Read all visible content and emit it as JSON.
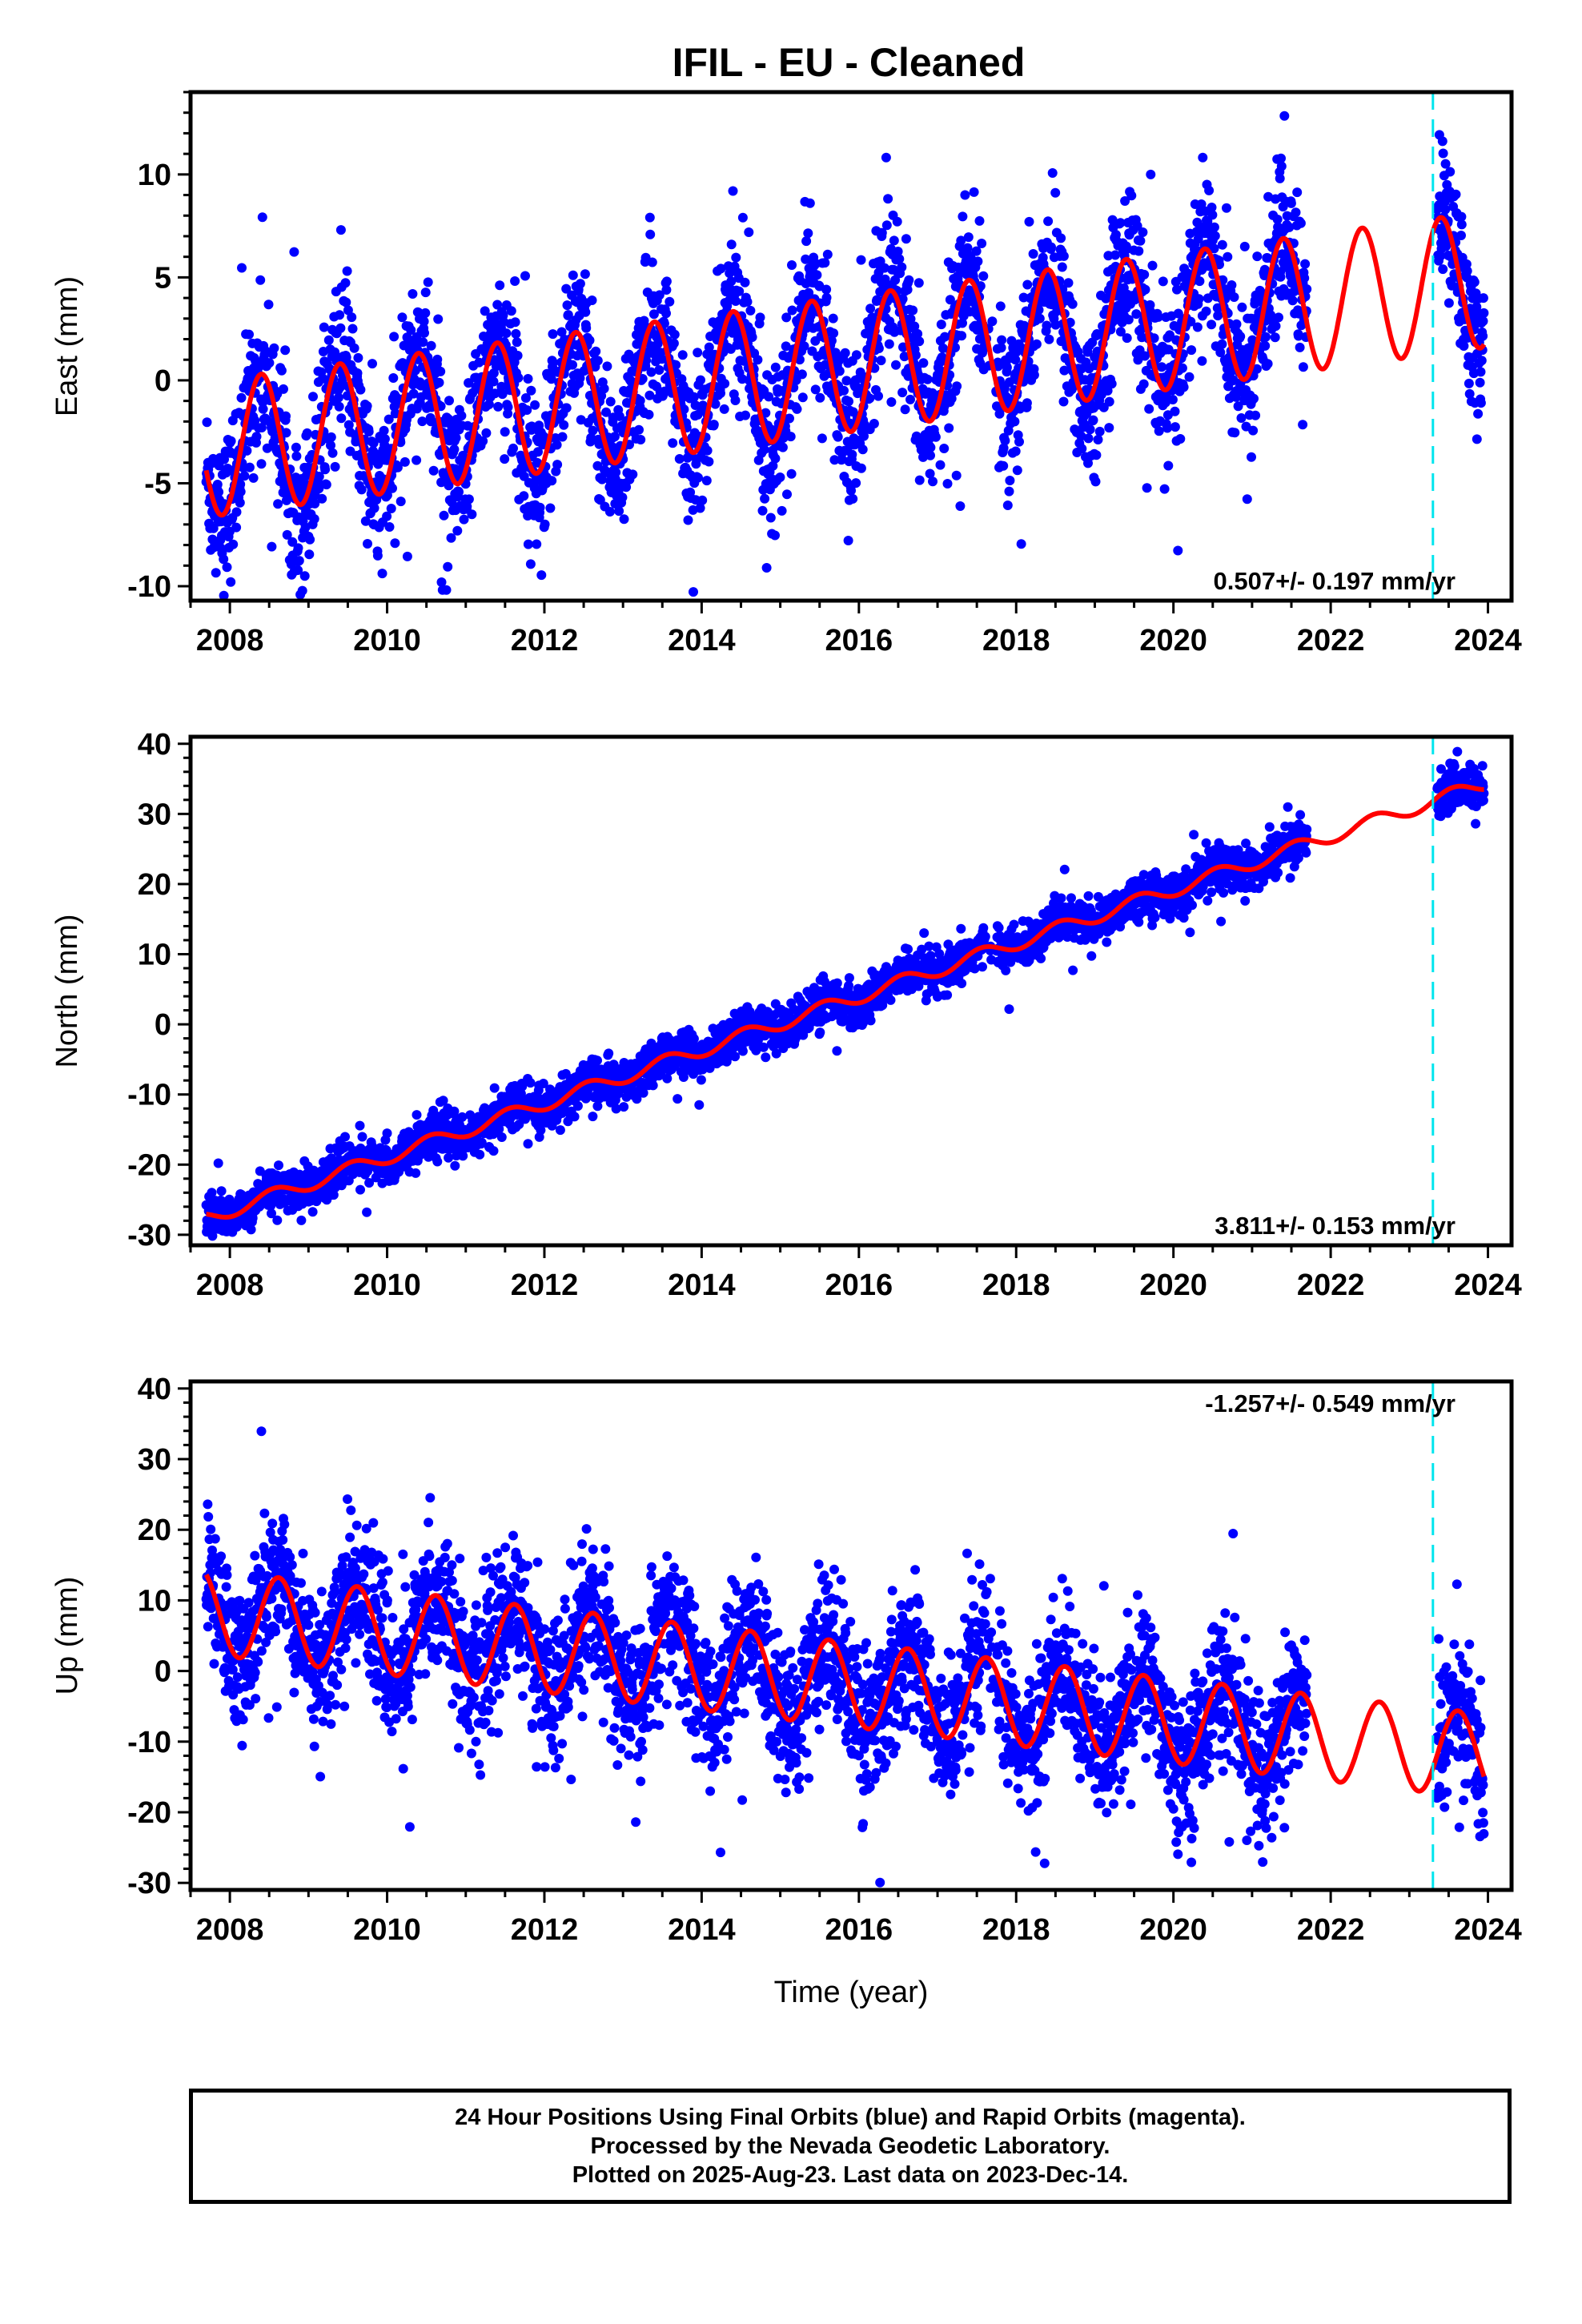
{
  "title": "IFIL  - EU - Cleaned",
  "caption": {
    "line1": "24 Hour Positions Using Final Orbits (blue) and Rapid Orbits (magenta).",
    "line2": "Processed by the Nevada Geodetic Laboratory.",
    "line3": "Plotted on 2025-Aug-23. Last data on 2023-Dec-14."
  },
  "colors": {
    "points": "#0000ff",
    "model": "#ff0000",
    "marker": "#00e5ee",
    "axes": "#000000"
  },
  "chart_data": [
    {
      "type": "scatter",
      "ylabel": "East (mm)",
      "xlim": [
        2007.5,
        2024.3
      ],
      "ylim": [
        -10.7,
        14
      ],
      "xticks": [
        2008,
        2010,
        2012,
        2014,
        2016,
        2018,
        2020,
        2022,
        2024
      ],
      "yticks": [
        -10,
        -5,
        0,
        5,
        10
      ],
      "rate_label": "0.507+/- 0.197 mm/yr",
      "rate_position": "bottom-right",
      "model": {
        "intercept": -3.2,
        "slope": 0.507,
        "ref_year": 2008,
        "amplitude": 3.3,
        "peak_phase": 0.4,
        "curvature": 0.05
      },
      "scatter_sigma": 1.8,
      "series": [
        {
          "values_desc": ""
        }
      ],
      "data_start": 2007.7,
      "gap": [
        2021.7,
        2023.35
      ],
      "data_end": 2023.95,
      "marker_year": 2023.3
    },
    {
      "type": "scatter",
      "ylabel": "North (mm)",
      "xlim": [
        2007.5,
        2024.3
      ],
      "ylim": [
        -31.5,
        41
      ],
      "xticks": [
        2008,
        2010,
        2012,
        2014,
        2016,
        2018,
        2020,
        2022,
        2024
      ],
      "yticks": [
        -30,
        -20,
        -10,
        0,
        10,
        20,
        30,
        40
      ],
      "rate_label": "3.811+/- 0.153 mm/yr",
      "rate_position": "bottom-right",
      "model": {
        "intercept": -26.5,
        "slope": 3.811,
        "ref_year": 2008,
        "amplitude": 1.0,
        "peak_phase": 0.55,
        "curvature": 0.0
      },
      "scatter_sigma": 1.5,
      "data_start": 2007.7,
      "gap": [
        2021.7,
        2023.35
      ],
      "data_end": 2023.95,
      "marker_year": 2023.3
    },
    {
      "type": "scatter",
      "ylabel": "Up (mm)",
      "xlabel": "Time (year)",
      "xlim": [
        2007.5,
        2024.3
      ],
      "ylim": [
        -31,
        41
      ],
      "xticks": [
        2008,
        2010,
        2012,
        2014,
        2016,
        2018,
        2020,
        2022,
        2024
      ],
      "yticks": [
        -30,
        -20,
        -10,
        0,
        10,
        20,
        30,
        40
      ],
      "rate_label": "-1.257+/- 0.549 mm/yr",
      "rate_position": "top-right",
      "model": {
        "intercept": 8.0,
        "slope": -1.257,
        "ref_year": 2008,
        "amplitude": 6.0,
        "peak_phase": 0.62,
        "curvature": 0.0
      },
      "scatter_sigma": 5.0,
      "data_start": 2007.7,
      "gap": [
        2021.7,
        2023.35
      ],
      "data_end": 2023.95,
      "marker_year": 2023.3
    }
  ]
}
